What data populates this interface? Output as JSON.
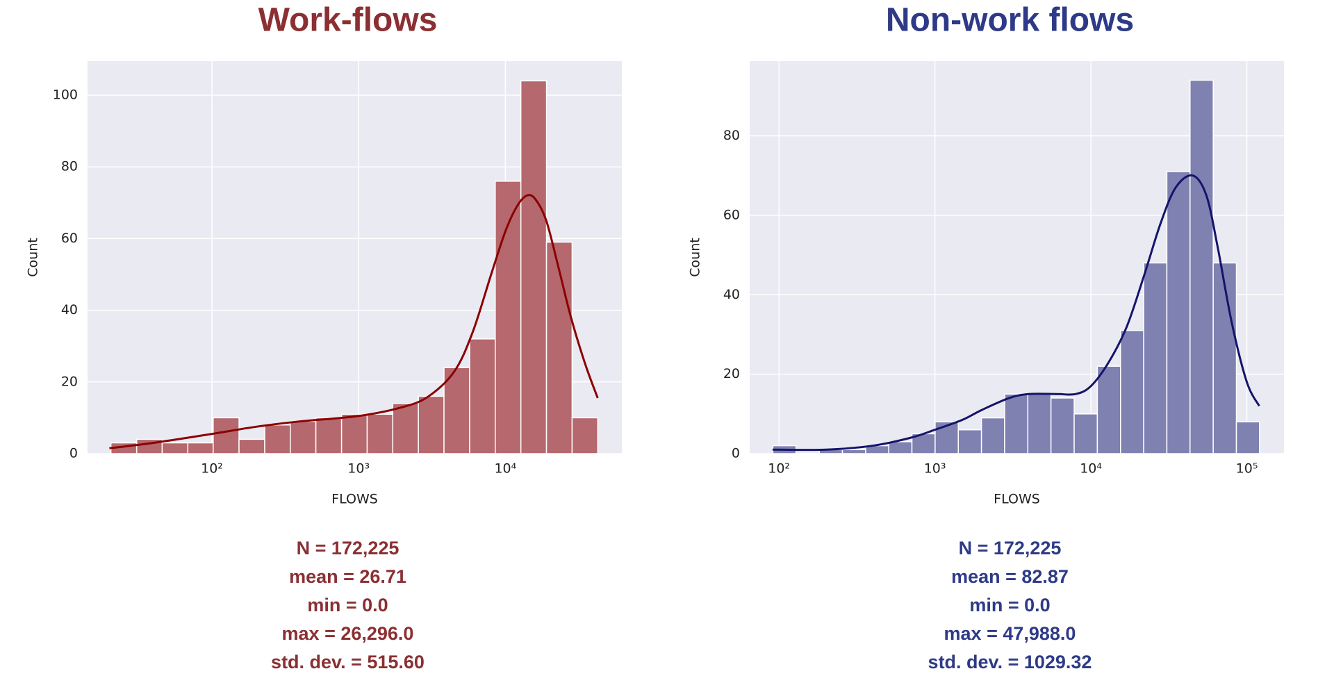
{
  "chart_data": [
    {
      "type": "histogram",
      "title": "Work-flows",
      "title_color": "#8b2f33",
      "xlabel": "FLOWS",
      "ylabel": "Count",
      "xscale": "log",
      "grid": true,
      "bins": [
        20.5,
        30.7,
        45.8,
        68.5,
        102,
        153,
        229,
        342,
        511,
        765,
        1143,
        1708,
        2554,
        3817,
        5707,
        8531,
        12754,
        19065,
        28500,
        42606
      ],
      "values": [
        3,
        4,
        3,
        3,
        10,
        4,
        8,
        9,
        10,
        11,
        11,
        14,
        16,
        24,
        32,
        76,
        104,
        59,
        10
      ],
      "color": "#b5686d",
      "line_color": "#8b0000",
      "kde": {
        "x": [
          20,
          40,
          100,
          200,
          400,
          1000,
          2000,
          3000,
          4500,
          6000,
          8000,
          10000,
          12000,
          14000,
          16000,
          19000,
          23000,
          28000,
          35000,
          42600
        ],
        "values": [
          1.5,
          3,
          5.5,
          7.5,
          9,
          10.5,
          13,
          16,
          23,
          34,
          50,
          62,
          69,
          72,
          71,
          65,
          52,
          38,
          25,
          15.5
        ]
      },
      "xlim": [
        14.2,
        62200
      ],
      "ylim": [
        0,
        109.5
      ],
      "xticks": [
        {
          "value": 100,
          "label": "10²"
        },
        {
          "value": 1000,
          "label": "10³"
        },
        {
          "value": 10000,
          "label": "10⁴"
        }
      ],
      "yticks": [
        0,
        20,
        40,
        60,
        80,
        100
      ],
      "stats": [
        "N =  172,225",
        "mean =  26.71",
        "min = 0.0",
        "max = 26,296.0",
        "std. dev.  = 515.60"
      ]
    },
    {
      "type": "histogram",
      "title": "Non-work flows",
      "title_color": "#2e3a87",
      "xlabel": "FLOWS",
      "ylabel": "Count",
      "xscale": "log",
      "grid": true,
      "bins": [
        91.4,
        128.7,
        181.3,
        255.2,
        359.4,
        505.8,
        712.2,
        1003,
        1412,
        1988,
        2799,
        3941,
        5549,
        7813,
        11000,
        15490,
        21810,
        30700,
        43230,
        60870,
        85700,
        120660
      ],
      "values": [
        2,
        0,
        1,
        1,
        2,
        3,
        5,
        8,
        6,
        9,
        15,
        15,
        14,
        10,
        22,
        31,
        48,
        71,
        94,
        48,
        8
      ],
      "color": "#7f81b1",
      "line_color": "#14146b",
      "kde": {
        "x": [
          91,
          200,
          400,
          700,
          1000,
          1500,
          2000,
          3000,
          4000,
          6000,
          8000,
          10000,
          13000,
          17000,
          22000,
          28000,
          35000,
          45000,
          55000,
          65000,
          80000,
          100000,
          120000
        ],
        "values": [
          1,
          1,
          2,
          4,
          6,
          8.5,
          11,
          14,
          15,
          15,
          15,
          17,
          23,
          32,
          45,
          58,
          67,
          70,
          65,
          52,
          33,
          18,
          12
        ]
      },
      "xlim": [
        64.9,
        173000
      ],
      "ylim": [
        0,
        98.8
      ],
      "xticks": [
        {
          "value": 100,
          "label": "10²"
        },
        {
          "value": 1000,
          "label": "10³"
        },
        {
          "value": 10000,
          "label": "10⁴"
        },
        {
          "value": 100000,
          "label": "10⁵"
        }
      ],
      "yticks": [
        0,
        20,
        40,
        60,
        80
      ],
      "stats": [
        "N =  172,225",
        "mean =  82.87",
        "min = 0.0",
        "max = 47,988.0",
        "std. dev.  = 1029.32"
      ]
    }
  ]
}
